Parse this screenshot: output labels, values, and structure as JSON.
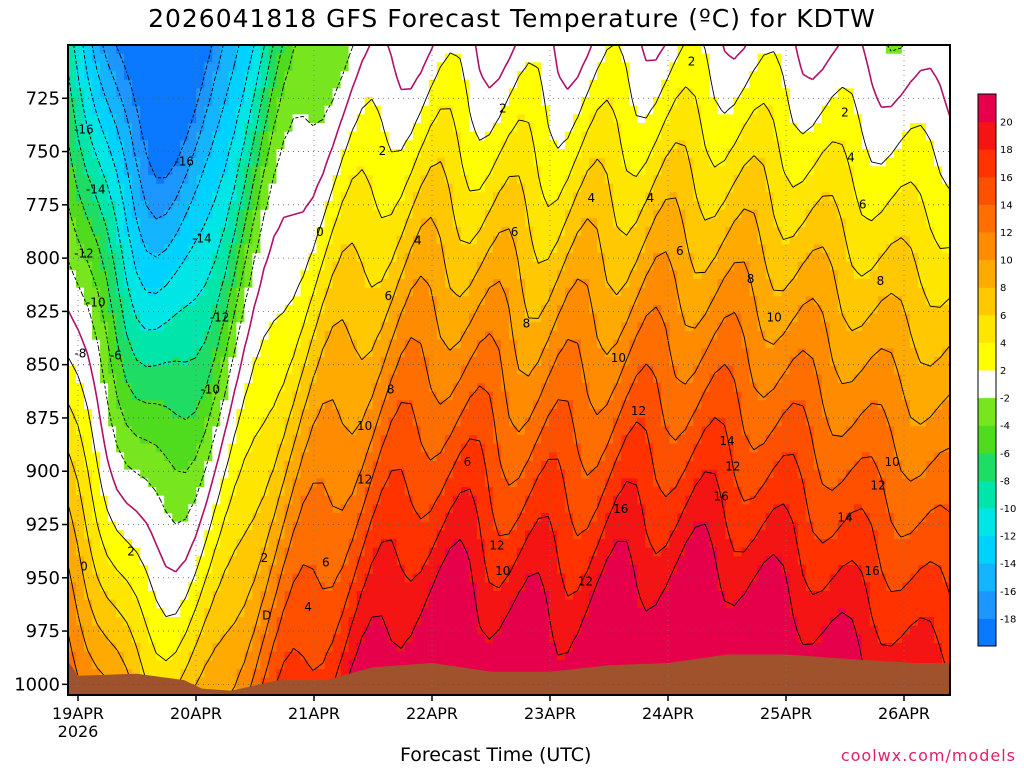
{
  "page": {
    "title": "2026041818 GFS Forecast Temperature (ºC) for KDTW",
    "xlabel": "Forecast Time (UTC)",
    "credit": "coolwx.com/models"
  },
  "chart_data": {
    "type": "heatmap",
    "title": "2026041818 GFS Forecast Temperature (ºC) for KDTW",
    "xlabel": "Forecast Time (UTC)",
    "ylabel": "",
    "x_ticks": [
      "19APR",
      "20APR",
      "21APR",
      "22APR",
      "23APR",
      "24APR",
      "25APR",
      "26APR"
    ],
    "x_year_label": "2026",
    "x_range_days": [
      0,
      7.55
    ],
    "y_ticks": [
      725,
      750,
      775,
      800,
      825,
      850,
      875,
      900,
      925,
      950,
      975,
      1000
    ],
    "y_range": [
      700,
      1005
    ],
    "y_reversed": true,
    "grid": true,
    "colorbar": {
      "levels": [
        -20,
        -18,
        -16,
        -14,
        -12,
        -10,
        -8,
        -6,
        -4,
        -2,
        2,
        4,
        6,
        8,
        10,
        12,
        14,
        16,
        18,
        20,
        22
      ],
      "tick_labels": [
        "-18",
        "-16",
        "-14",
        "-12",
        "-10",
        "-8",
        "-6",
        "-4",
        "-2",
        "2",
        "4",
        "6",
        "8",
        "10",
        "12",
        "14",
        "16",
        "18",
        "20"
      ],
      "colors": [
        "#0a78ff",
        "#1e96ff",
        "#14b4ff",
        "#00d2ff",
        "#00e6e6",
        "#00e6aa",
        "#1edc64",
        "#50dc1e",
        "#78e61e",
        "#ffffff",
        "#ffff00",
        "#ffe600",
        "#ffc800",
        "#ffaa00",
        "#ff8c00",
        "#ff6e00",
        "#ff5000",
        "#ff3200",
        "#f51414",
        "#e6004b"
      ]
    },
    "terrain_color": "#a0522d",
    "contour_labels": [
      {
        "t": 0.55,
        "p": 740,
        "v": "-16"
      },
      {
        "t": 0.65,
        "p": 768,
        "v": "-14"
      },
      {
        "t": 0.55,
        "p": 798,
        "v": "-12"
      },
      {
        "t": 0.65,
        "p": 821,
        "v": "-10"
      },
      {
        "t": 0.52,
        "p": 845,
        "v": "-8"
      },
      {
        "t": 0.82,
        "p": 846,
        "v": "-6"
      },
      {
        "t": 1.4,
        "p": 755,
        "v": "-16"
      },
      {
        "t": 1.55,
        "p": 791,
        "v": "-14"
      },
      {
        "t": 1.7,
        "p": 828,
        "v": "-12"
      },
      {
        "t": 1.62,
        "p": 862,
        "v": "-10"
      },
      {
        "t": 0.12,
        "p": 892,
        "v": "-2"
      },
      {
        "t": 0.55,
        "p": 945,
        "v": "0"
      },
      {
        "t": 0.95,
        "p": 938,
        "v": "2"
      },
      {
        "t": -0.08,
        "p": 930,
        "v": "2"
      },
      {
        "t": 0.02,
        "p": 944,
        "v": "4"
      },
      {
        "t": -0.08,
        "p": 972,
        "v": "6"
      },
      {
        "t": 2.55,
        "p": 788,
        "v": "0"
      },
      {
        "t": 2.08,
        "p": 941,
        "v": "2"
      },
      {
        "t": 2.45,
        "p": 964,
        "v": "4"
      },
      {
        "t": 2.6,
        "p": 943,
        "v": "6"
      },
      {
        "t": 2.1,
        "p": 968,
        "v": "D"
      },
      {
        "t": 3.08,
        "p": 750,
        "v": "2"
      },
      {
        "t": 3.38,
        "p": 792,
        "v": "4"
      },
      {
        "t": 3.13,
        "p": 818,
        "v": "6"
      },
      {
        "t": 3.15,
        "p": 862,
        "v": "8"
      },
      {
        "t": 2.93,
        "p": 879,
        "v": "10"
      },
      {
        "t": 2.93,
        "p": 904,
        "v": "12"
      },
      {
        "t": 4.1,
        "p": 730,
        "v": "2"
      },
      {
        "t": 4.2,
        "p": 788,
        "v": "6"
      },
      {
        "t": 4.3,
        "p": 831,
        "v": "8"
      },
      {
        "t": 3.8,
        "p": 896,
        "v": "6"
      },
      {
        "t": 4.05,
        "p": 935,
        "v": "12"
      },
      {
        "t": 4.1,
        "p": 947,
        "v": "10"
      },
      {
        "t": 4.8,
        "p": 952,
        "v": "12"
      },
      {
        "t": 4.85,
        "p": 772,
        "v": "4"
      },
      {
        "t": 5.35,
        "p": 772,
        "v": "4"
      },
      {
        "t": 5.08,
        "p": 847,
        "v": "10"
      },
      {
        "t": 5.25,
        "p": 872,
        "v": "12"
      },
      {
        "t": 5.1,
        "p": 918,
        "v": "16"
      },
      {
        "t": 5.6,
        "p": 797,
        "v": "6"
      },
      {
        "t": 6.2,
        "p": 810,
        "v": "8"
      },
      {
        "t": 6.4,
        "p": 828,
        "v": "10"
      },
      {
        "t": 6.0,
        "p": 886,
        "v": "14"
      },
      {
        "t": 6.05,
        "p": 898,
        "v": "12"
      },
      {
        "t": 5.95,
        "p": 912,
        "v": "16"
      },
      {
        "t": 5.7,
        "p": 708,
        "v": "2"
      },
      {
        "t": 7.0,
        "p": 732,
        "v": "2"
      },
      {
        "t": 7.05,
        "p": 753,
        "v": "4"
      },
      {
        "t": 7.15,
        "p": 775,
        "v": "6"
      },
      {
        "t": 7.3,
        "p": 811,
        "v": "8"
      },
      {
        "t": 7.4,
        "p": 896,
        "v": "10"
      },
      {
        "t": 7.28,
        "p": 907,
        "v": "12"
      },
      {
        "t": 7.0,
        "p": 922,
        "v": "14"
      },
      {
        "t": 7.23,
        "p": 947,
        "v": "16"
      }
    ]
  }
}
